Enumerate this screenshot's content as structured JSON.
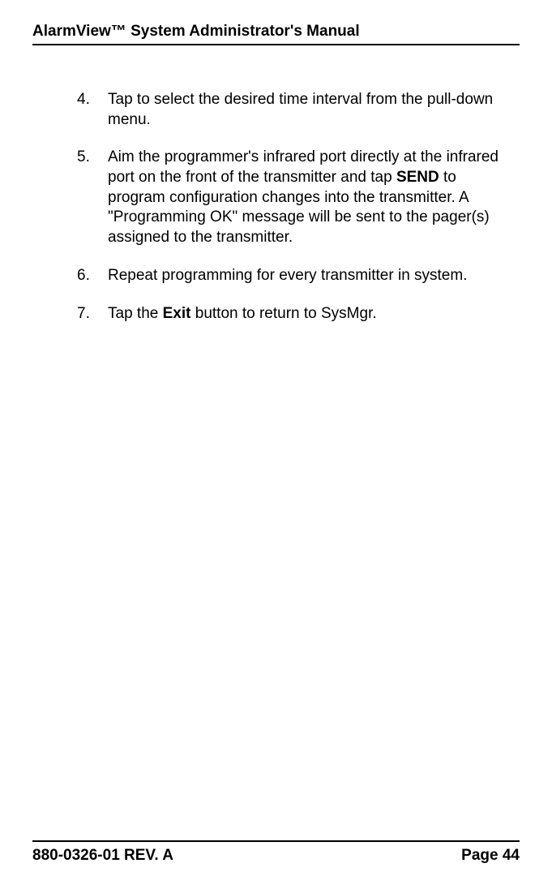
{
  "header": {
    "title": "AlarmView™ System Administrator's Manual"
  },
  "items": [
    {
      "num": "4.",
      "text": "Tap to select the desired time interval from the pull-down menu."
    },
    {
      "num": "5.",
      "pre": "Aim the programmer's infrared port directly at the infrared port on the front of the transmitter and tap ",
      "bold": "SEND",
      "post": " to program configuration changes into the transmitter. A \"Programming OK\" message will be sent to the pager(s) assigned to the transmitter."
    },
    {
      "num": "6.",
      "text": "Repeat programming for every transmitter in system."
    },
    {
      "num": "7.",
      "pre": "Tap the ",
      "bold": "Exit",
      "post": " button to return to SysMgr."
    }
  ],
  "footer": {
    "left": "880-0326-01 REV. A",
    "right": "Page 44"
  }
}
